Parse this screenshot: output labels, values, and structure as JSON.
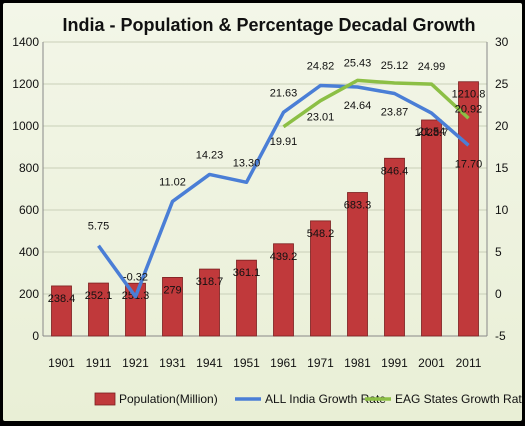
{
  "chart_data": {
    "type": "bar",
    "title": "India - Population & Percentage Decadal Growth",
    "categories": [
      "1901",
      "1911",
      "1921",
      "1931",
      "1941",
      "1951",
      "1961",
      "1971",
      "1981",
      "1991",
      "2001",
      "2011"
    ],
    "ylim": [
      0,
      1400
    ],
    "y_ticks": [
      "0",
      "200",
      "400",
      "600",
      "800",
      "1000",
      "1200",
      "1400"
    ],
    "y2lim": [
      -5,
      30
    ],
    "y2_ticks": [
      "-5",
      "0",
      "5",
      "10",
      "15",
      "20",
      "25",
      "30"
    ],
    "grid": true,
    "legend_position": "bottom",
    "series": [
      {
        "name": "Population(Million)",
        "kind": "bar",
        "axis": "left",
        "color": "#c0393b",
        "values": [
          238.4,
          252.1,
          251.3,
          279,
          318.7,
          361.1,
          439.2,
          548.2,
          683.3,
          846.4,
          1028.7,
          1210.8
        ],
        "labels": [
          "238.4",
          "252.1",
          "251.3",
          "279",
          "318.7",
          "361.1",
          "439.2",
          "548.2",
          "683.3",
          "846.4",
          "1028.7",
          "1210.8"
        ]
      },
      {
        "name": "ALL India Growth Rate",
        "kind": "line",
        "axis": "right",
        "color": "#4a7ed6",
        "values": [
          null,
          5.75,
          -0.32,
          11.02,
          14.23,
          13.3,
          21.63,
          24.82,
          24.64,
          23.87,
          21.54,
          17.7
        ],
        "labels": [
          "",
          "5.75",
          "-0.32",
          "11.02",
          "14.23",
          "13.30",
          "21.63",
          "24.82",
          "24.64",
          "23.87",
          "21.54",
          "17.70"
        ]
      },
      {
        "name": "EAG States Growth Rate",
        "kind": "line",
        "axis": "right",
        "color": "#8cbf45",
        "values": [
          null,
          null,
          null,
          null,
          null,
          null,
          19.91,
          23.01,
          25.43,
          25.12,
          24.99,
          20.92
        ],
        "labels": [
          "",
          "",
          "",
          "",
          "",
          "",
          "19.91",
          "23.01",
          "25.43",
          "25.12",
          "24.99",
          "20.92"
        ]
      }
    ]
  }
}
